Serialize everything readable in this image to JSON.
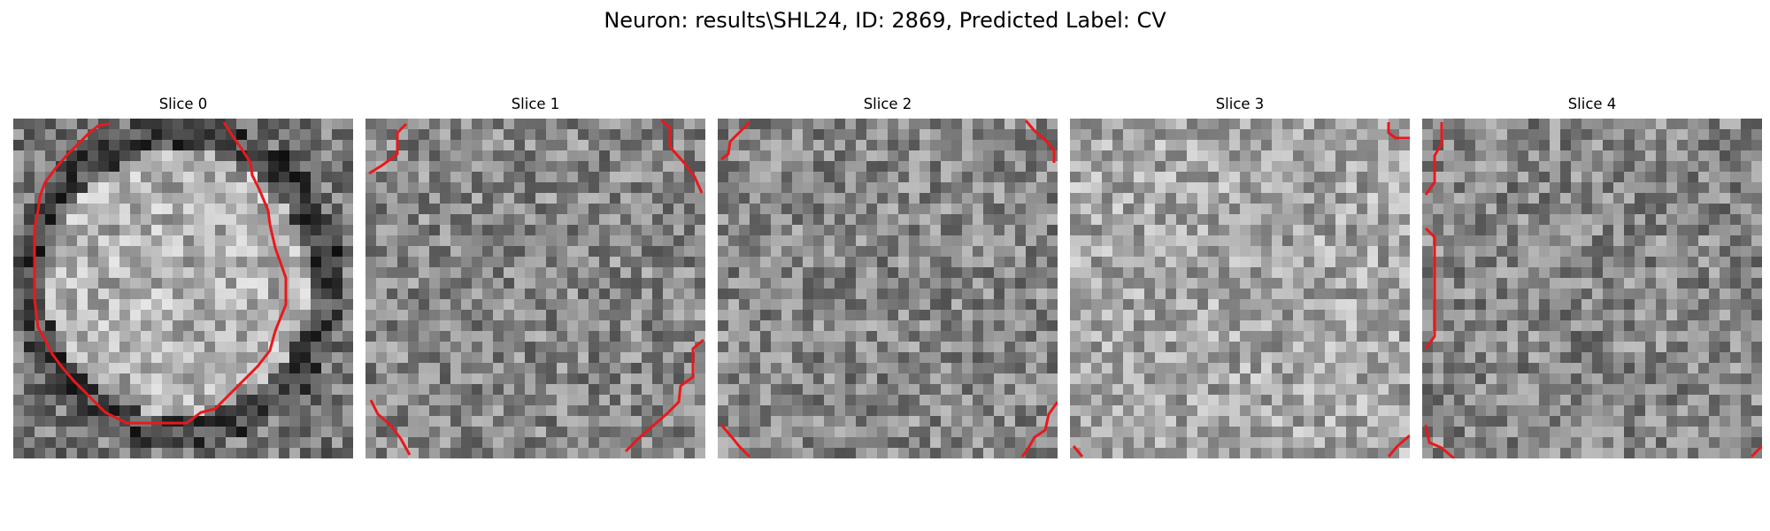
{
  "figure": {
    "title": "Neuron: results\\SHL24, ID: 2869, Predicted Label: CV",
    "contour_color": "#e8191c"
  },
  "slices": [
    {
      "title": "Slice 0",
      "contour_desc": "large roughly circular red outline around a bright blob"
    },
    {
      "title": "Slice 1",
      "contour_desc": "red contour fragments at corners"
    },
    {
      "title": "Slice 2",
      "contour_desc": "red contour fragments at corners"
    },
    {
      "title": "Slice 3",
      "contour_desc": "small red contour fragments at corners"
    },
    {
      "title": "Slice 4",
      "contour_desc": "red contour fragments along left edge and corners"
    }
  ]
}
